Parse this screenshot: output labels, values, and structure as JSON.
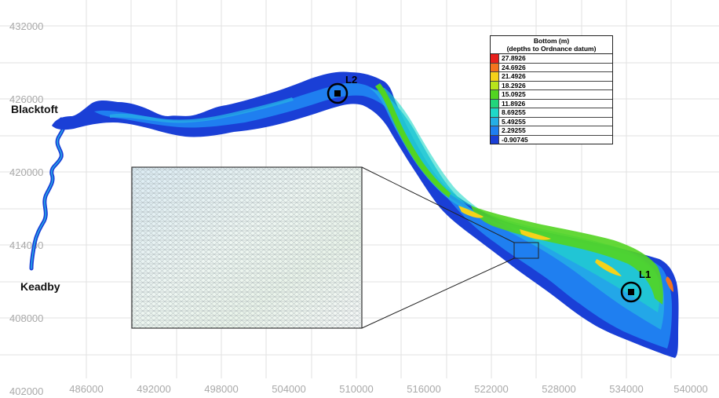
{
  "axes": {
    "x_ticks": [
      "486000",
      "492000",
      "498000",
      "504000",
      "510000",
      "516000",
      "522000",
      "528000",
      "534000",
      "540000"
    ],
    "y_ticks": [
      "432000",
      "426000",
      "420000",
      "414000",
      "408000",
      "402000"
    ]
  },
  "places": {
    "blacktoft": "Blacktoft",
    "keadby": "Keadby"
  },
  "markers": {
    "l1": "L1",
    "l2": "L2"
  },
  "legend": {
    "title_line1": "Bottom (m)",
    "title_line2": "(depths to Ordnance datum)",
    "items": [
      {
        "value": "27.8926",
        "color": "#e8201c"
      },
      {
        "value": "24.6926",
        "color": "#f4741e"
      },
      {
        "value": "21.4926",
        "color": "#f5d21a"
      },
      {
        "value": "18.2926",
        "color": "#b8e41c"
      },
      {
        "value": "15.0925",
        "color": "#52d421"
      },
      {
        "value": "11.8926",
        "color": "#22d67c"
      },
      {
        "value": "8.69255",
        "color": "#1fd8c8"
      },
      {
        "value": "5.49255",
        "color": "#25aee6"
      },
      {
        "value": "2.29255",
        "color": "#1f7ff0"
      },
      {
        "value": "-0.90745",
        "color": "#1a3fd6"
      }
    ]
  },
  "colors": {
    "deep": "#1a3fd6",
    "shallow_blue": "#1f7ff0",
    "light_blue": "#25aee6",
    "cyan": "#1fd8c8",
    "green": "#52d421",
    "yellow": "#f5d21a",
    "orange": "#f4741e",
    "grid": "#e2e2e2"
  },
  "inset": {
    "description_icon": "mesh-zoom-inset"
  }
}
